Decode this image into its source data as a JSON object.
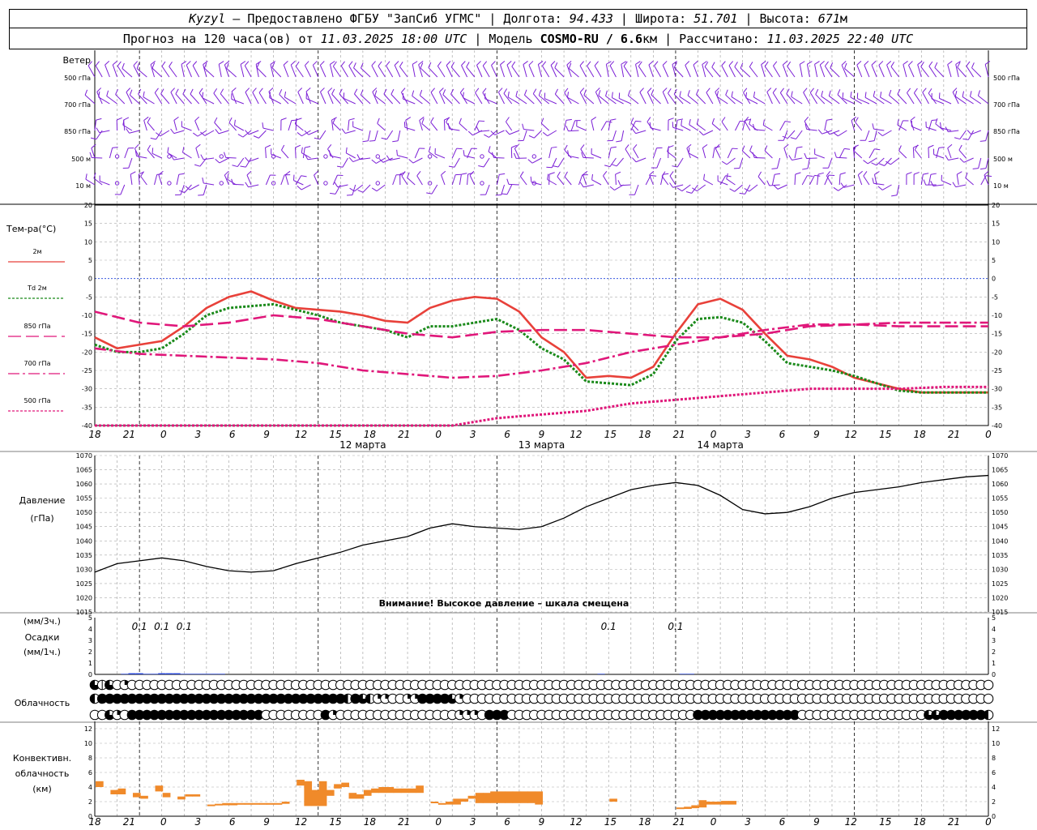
{
  "header": {
    "station": "Kyzyl",
    "provider": "– Предоставлено ФГБУ \"ЗапСиб УГМС\" |",
    "lon_label": "Долгота:",
    "lon_value": "94.433",
    "lat_label": "| Широта:",
    "lat_value": "51.701",
    "alt_label": "| Высота:",
    "alt_value": "671",
    "alt_unit": "м",
    "forecast_label": "Прогноз на 120 часа(ов) от",
    "forecast_start": "11.03.2025 18:00 UTC",
    "model_label": "| Модель",
    "model_name": "COSMO-RU / 6.6",
    "model_unit": "км",
    "calc_label": "| Рассчитано:",
    "calc_time": "11.03.2025 22:40 UTC"
  },
  "chart_data": [
    {
      "type": "wind_barbs",
      "title": "Ветер",
      "levels": [
        "500 гПа",
        "700 гПа",
        "850 гПа",
        "500 м",
        "10 м"
      ],
      "color": "#7b1fd6"
    },
    {
      "type": "line",
      "title": "Тем-ра(°C)",
      "ylim": [
        -40,
        20
      ],
      "yticks": [
        -40,
        -35,
        -30,
        -25,
        -20,
        -15,
        -10,
        -5,
        0,
        5,
        10,
        15,
        20
      ],
      "x_hours": [
        "18",
        "21",
        "0",
        "3",
        "6",
        "9",
        "12",
        "15",
        "18",
        "21",
        "0",
        "3",
        "6",
        "9",
        "12",
        "15",
        "18",
        "21",
        "0",
        "3",
        "6",
        "9",
        "12",
        "15",
        "18",
        "21",
        "0"
      ],
      "days": [
        {
          "label": "12 марта",
          "at_hour": 36
        },
        {
          "label": "13 марта",
          "at_hour": 60
        },
        {
          "label": "14 марта",
          "at_hour": 84
        }
      ],
      "series": [
        {
          "name": "2м",
          "color": "#e8413a",
          "style": "solid",
          "x": [
            0,
            3,
            6,
            9,
            12,
            15,
            18,
            21,
            24,
            27,
            30,
            33,
            36,
            39,
            42,
            45,
            48,
            51,
            54,
            57,
            60,
            63,
            66,
            69,
            72,
            75,
            78,
            81,
            84,
            87,
            90,
            93,
            96,
            99,
            102,
            105,
            108,
            111,
            114,
            117,
            120
          ],
          "y": [
            -16,
            -19,
            -18,
            -17,
            -13,
            -8,
            -5,
            -3.5,
            -6,
            -8,
            -8.5,
            -9,
            -10,
            -11.5,
            -12,
            -8,
            -6,
            -5,
            -5.5,
            -9,
            -16,
            -20,
            -27,
            -26.5,
            -27,
            -24,
            -15,
            -7,
            -5.5,
            -8.5,
            -15,
            -21,
            -22,
            -24,
            -27,
            -28.5,
            -30,
            -31,
            -31,
            -31,
            -31
          ]
        },
        {
          "name": "Td 2м",
          "color": "#1a8a1a",
          "style": "dotted",
          "x": [
            0,
            3,
            6,
            9,
            12,
            15,
            18,
            21,
            24,
            27,
            30,
            33,
            36,
            39,
            42,
            45,
            48,
            51,
            54,
            57,
            60,
            63,
            66,
            69,
            72,
            75,
            78,
            81,
            84,
            87,
            90,
            93,
            96,
            99,
            102,
            105,
            108,
            111,
            114,
            117,
            120
          ],
          "y": [
            -18,
            -20,
            -20,
            -19,
            -15,
            -10,
            -8,
            -7.5,
            -7,
            -8.5,
            -10,
            -12,
            -13,
            -14,
            -16,
            -13,
            -13,
            -12,
            -11,
            -14,
            -19,
            -22,
            -28,
            -28.5,
            -29,
            -26,
            -17,
            -11,
            -10.5,
            -12,
            -17,
            -23,
            -24,
            -25,
            -26.5,
            -28.5,
            -30.5,
            -31,
            -31,
            -31,
            -31
          ]
        },
        {
          "name": "850 гПа",
          "color": "#e0177a",
          "style": "longdash",
          "x": [
            0,
            6,
            12,
            18,
            24,
            30,
            36,
            42,
            48,
            54,
            60,
            66,
            72,
            78,
            84,
            90,
            96,
            102,
            108,
            114,
            120
          ],
          "y": [
            -9,
            -12,
            -13,
            -12,
            -10,
            -11,
            -13,
            -15,
            -16,
            -14.5,
            -14,
            -14,
            -15,
            -16,
            -16,
            -15,
            -13,
            -12.5,
            -13,
            -13,
            -13
          ]
        },
        {
          "name": "700 гПа",
          "color": "#e0177a",
          "style": "dashdot",
          "x": [
            0,
            6,
            12,
            18,
            24,
            30,
            36,
            42,
            48,
            54,
            60,
            66,
            72,
            78,
            84,
            90,
            96,
            102,
            108,
            114,
            120
          ],
          "y": [
            -19,
            -20.5,
            -21,
            -21.5,
            -22,
            -23,
            -25,
            -26,
            -27,
            -26.5,
            -25,
            -23,
            -20,
            -18,
            -16,
            -14,
            -12.5,
            -12.5,
            -12,
            -12,
            -12
          ]
        },
        {
          "name": "500 гПа",
          "color": "#e0177a",
          "style": "dotted",
          "x": [
            0,
            12,
            24,
            36,
            48,
            54,
            60,
            66,
            72,
            78,
            84,
            90,
            96,
            102,
            108,
            114,
            120
          ],
          "y": [
            -40,
            -40,
            -40,
            -40,
            -40,
            -38,
            -37,
            -36,
            -34,
            -33,
            -32,
            -31,
            -30,
            -30,
            -30,
            -29.5,
            -29.5
          ]
        }
      ]
    },
    {
      "type": "line",
      "title": "Давление",
      "unit": "(гПа)",
      "ylim": [
        1015,
        1070
      ],
      "yticks": [
        1015,
        1020,
        1025,
        1030,
        1035,
        1040,
        1045,
        1050,
        1055,
        1060,
        1065,
        1070
      ],
      "warning": "Внимание! Высокое давление – шкала смещена",
      "series": [
        {
          "name": "Давление",
          "color": "#000000",
          "x": [
            0,
            3,
            6,
            9,
            12,
            15,
            18,
            21,
            24,
            27,
            30,
            33,
            36,
            39,
            42,
            45,
            48,
            51,
            54,
            57,
            60,
            63,
            66,
            69,
            72,
            75,
            78,
            81,
            84,
            87,
            90,
            93,
            96,
            99,
            102,
            105,
            108,
            111,
            114,
            117,
            120
          ],
          "y": [
            1029,
            1032,
            1033,
            1034,
            1033,
            1031,
            1029.5,
            1029,
            1029.5,
            1032,
            1034,
            1036,
            1038.5,
            1040,
            1041.5,
            1044.5,
            1046,
            1045,
            1044.5,
            1044,
            1045,
            1048,
            1052,
            1055,
            1058,
            1059.5,
            1060.5,
            1059.5,
            1056,
            1051,
            1049.5,
            1050,
            1052,
            1055,
            1057,
            1058,
            1059,
            1060.5,
            1061.5,
            1062.5,
            1063
          ]
        }
      ]
    },
    {
      "type": "bar",
      "title": "Осадки",
      "units": [
        "(мм/3ч.)",
        "(мм/1ч.)"
      ],
      "ylim": [
        0,
        5
      ],
      "yticks": [
        0,
        1,
        2,
        3,
        4,
        5
      ],
      "labels": [
        {
          "text": "0.1",
          "at_hour": 6
        },
        {
          "text": "0.1",
          "at_hour": 9
        },
        {
          "text": "0.1",
          "at_hour": 12
        },
        {
          "text": "0.1",
          "at_hour": 69
        },
        {
          "text": "0.1",
          "at_hour": 78
        }
      ],
      "color": "#1f3fd6",
      "x": [
        4,
        5,
        6,
        7,
        8,
        9,
        10,
        11,
        12,
        13,
        14,
        15,
        16,
        17,
        68,
        79,
        80
      ],
      "values": [
        0.05,
        0.1,
        0.1,
        0.05,
        0.05,
        0.1,
        0.1,
        0.1,
        0.05,
        0.05,
        0.05,
        0.05,
        0.05,
        0.05,
        0.05,
        0.05,
        0.05
      ]
    },
    {
      "type": "cloud_symbols",
      "title": "Облачность",
      "rows": [
        "35301000000000000000000000000000000000000000000000000000000000000000000000000000000000000000000000000000000000000000000000",
        "24444444444444444444444444444444442432110011444431000000000000000000000000000000000000000000000000000000000000000000000000",
        "00310444444444444444444000000004100000000000000001110444000000000000000000000000044444444444444000000000000000003344444422"
      ]
    },
    {
      "type": "bar",
      "title": "Конвективн. облачность",
      "unit": "(км)",
      "ylim": [
        0,
        13
      ],
      "yticks": [
        0,
        2,
        4,
        6,
        8,
        10,
        12
      ],
      "color": "#f08a2a",
      "bars": [
        {
          "x": 0,
          "base": 4,
          "top": 4.8
        },
        {
          "x": 2,
          "base": 3,
          "top": 3.6
        },
        {
          "x": 3,
          "base": 3,
          "top": 3.8
        },
        {
          "x": 5,
          "base": 2.6,
          "top": 3.2
        },
        {
          "x": 6,
          "base": 2.4,
          "top": 2.8
        },
        {
          "x": 8,
          "base": 3.4,
          "top": 4.2
        },
        {
          "x": 9,
          "base": 2.6,
          "top": 3.2
        },
        {
          "x": 11,
          "base": 2.3,
          "top": 2.7
        },
        {
          "x": 12,
          "base": 2.7,
          "top": 3
        },
        {
          "x": 13,
          "base": 2.7,
          "top": 3
        },
        {
          "x": 15,
          "base": 1.4,
          "top": 1.6
        },
        {
          "x": 16,
          "base": 1.5,
          "top": 1.7
        },
        {
          "x": 17,
          "base": 1.5,
          "top": 1.8
        },
        {
          "x": 18,
          "base": 1.5,
          "top": 1.8
        },
        {
          "x": 19,
          "base": 1.6,
          "top": 1.8
        },
        {
          "x": 20,
          "base": 1.6,
          "top": 1.8
        },
        {
          "x": 21,
          "base": 1.6,
          "top": 1.8
        },
        {
          "x": 22,
          "base": 1.6,
          "top": 1.8
        },
        {
          "x": 23,
          "base": 1.6,
          "top": 1.8
        },
        {
          "x": 24,
          "base": 1.6,
          "top": 1.8
        },
        {
          "x": 25,
          "base": 1.7,
          "top": 2
        },
        {
          "x": 27,
          "base": 4.2,
          "top": 5
        },
        {
          "x": 28,
          "base": 1.4,
          "top": 4.8
        },
        {
          "x": 29,
          "base": 1.4,
          "top": 3.6
        },
        {
          "x": 30,
          "base": 1.4,
          "top": 4.8
        },
        {
          "x": 31,
          "base": 2.8,
          "top": 3.6
        },
        {
          "x": 32,
          "base": 3.8,
          "top": 4.4
        },
        {
          "x": 33,
          "base": 4,
          "top": 4.6
        },
        {
          "x": 34,
          "base": 2.4,
          "top": 3.2
        },
        {
          "x": 35,
          "base": 2.4,
          "top": 3
        },
        {
          "x": 36,
          "base": 2.8,
          "top": 3.6
        },
        {
          "x": 37,
          "base": 3.2,
          "top": 3.8
        },
        {
          "x": 38,
          "base": 3.2,
          "top": 4
        },
        {
          "x": 39,
          "base": 3.2,
          "top": 4
        },
        {
          "x": 40,
          "base": 3.2,
          "top": 3.8
        },
        {
          "x": 41,
          "base": 3.2,
          "top": 3.8
        },
        {
          "x": 42,
          "base": 3.2,
          "top": 3.8
        },
        {
          "x": 43,
          "base": 3.2,
          "top": 4.2
        },
        {
          "x": 45,
          "base": 1.8,
          "top": 2
        },
        {
          "x": 46,
          "base": 1.6,
          "top": 1.8
        },
        {
          "x": 47,
          "base": 1.6,
          "top": 2
        },
        {
          "x": 48,
          "base": 1.6,
          "top": 2.4
        },
        {
          "x": 49,
          "base": 2,
          "top": 2.4
        },
        {
          "x": 50,
          "base": 2.4,
          "top": 2.8
        },
        {
          "x": 51,
          "base": 1.8,
          "top": 3.2
        },
        {
          "x": 52,
          "base": 1.8,
          "top": 3.2
        },
        {
          "x": 53,
          "base": 1.8,
          "top": 3.4
        },
        {
          "x": 54,
          "base": 1.8,
          "top": 3.4
        },
        {
          "x": 55,
          "base": 1.8,
          "top": 3.4
        },
        {
          "x": 56,
          "base": 1.8,
          "top": 3.4
        },
        {
          "x": 57,
          "base": 1.8,
          "top": 3.4
        },
        {
          "x": 58,
          "base": 1.8,
          "top": 3.4
        },
        {
          "x": 59,
          "base": 1.6,
          "top": 3.4
        },
        {
          "x": 69,
          "base": 2,
          "top": 2.4
        },
        {
          "x": 78,
          "base": 1,
          "top": 1.2
        },
        {
          "x": 79,
          "base": 1,
          "top": 1.3
        },
        {
          "x": 80,
          "base": 1.1,
          "top": 1.5
        },
        {
          "x": 81,
          "base": 1.2,
          "top": 2.2
        },
        {
          "x": 82,
          "base": 1.6,
          "top": 2
        },
        {
          "x": 83,
          "base": 1.6,
          "top": 2
        },
        {
          "x": 84,
          "base": 1.6,
          "top": 2.1
        },
        {
          "x": 85,
          "base": 1.6,
          "top": 2.1
        }
      ]
    }
  ]
}
